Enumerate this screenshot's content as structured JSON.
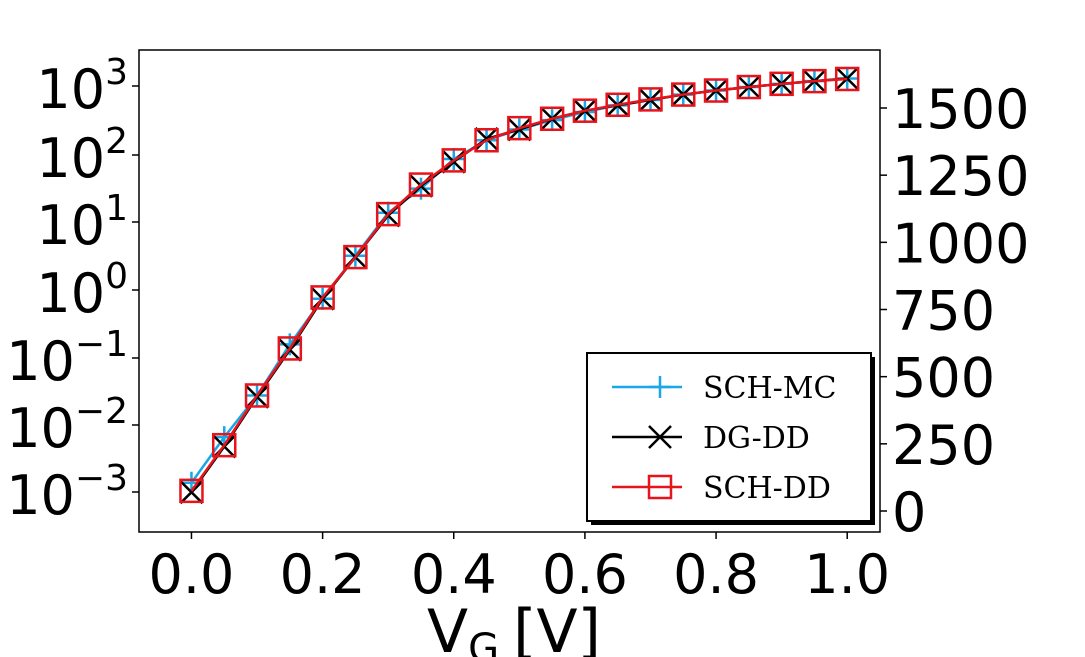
{
  "chart_data": {
    "type": "line",
    "title": "",
    "xlabel_main": "V",
    "xlabel_sub": "G",
    "xlabel_unit": "[V]",
    "ylabel": "",
    "xlim": [
      -0.08,
      1.05
    ],
    "x_ticks": [
      0.0,
      0.2,
      0.4,
      0.6,
      0.8,
      1.0
    ],
    "x_tick_labels": [
      "0.0",
      "0.2",
      "0.4",
      "0.6",
      "0.8",
      "1.0"
    ],
    "y_left_scale": "log",
    "y_left_ticks": [
      {
        "base": "10",
        "exp": "3"
      },
      {
        "base": "10",
        "exp": "2"
      },
      {
        "base": "10",
        "exp": "1"
      },
      {
        "base": "10",
        "exp": "0"
      },
      {
        "base": "10",
        "exp": "−1"
      },
      {
        "base": "10",
        "exp": "−2"
      },
      {
        "base": "10",
        "exp": "−3"
      }
    ],
    "y_right_scale": "linear",
    "y_right_ticks": [
      "1500",
      "1250",
      "1000",
      "750",
      "500",
      "250",
      "0"
    ],
    "grid": false,
    "legend_position": "lower-right",
    "legend": [
      {
        "label": "SCH-MC",
        "color": "#1aa7e8",
        "marker": "plus"
      },
      {
        "label": "DG-DD",
        "color": "#000000",
        "marker": "x"
      },
      {
        "label": "SCH-DD",
        "color": "#e8141b",
        "marker": "square"
      }
    ],
    "x": [
      0.0,
      0.05,
      0.1,
      0.15,
      0.2,
      0.25,
      0.3,
      0.35,
      0.4,
      0.45,
      0.5,
      0.55,
      0.6,
      0.65,
      0.7,
      0.75,
      0.8,
      0.85,
      0.9,
      0.95,
      1.0
    ],
    "series": [
      {
        "color": "#1aa7e8",
        "marker": "plus",
        "right_axis_values": [
          105,
          275,
          430,
          620,
          790,
          950,
          1110,
          1200,
          1310,
          1380,
          1420,
          1455,
          1485,
          1510,
          1530,
          1550,
          1565,
          1578,
          1590,
          1600,
          1610
        ]
      },
      {
        "color": "#000000",
        "marker": "x",
        "right_axis_values": [
          70,
          240,
          425,
          600,
          790,
          945,
          1100,
          1210,
          1300,
          1385,
          1420,
          1460,
          1490,
          1510,
          1530,
          1550,
          1565,
          1578,
          1590,
          1600,
          1610
        ]
      },
      {
        "color": "#e8141b",
        "marker": "square",
        "right_axis_values": [
          75,
          245,
          430,
          605,
          795,
          945,
          1105,
          1215,
          1305,
          1380,
          1425,
          1460,
          1490,
          1512,
          1532,
          1550,
          1565,
          1578,
          1590,
          1600,
          1608
        ]
      }
    ]
  }
}
